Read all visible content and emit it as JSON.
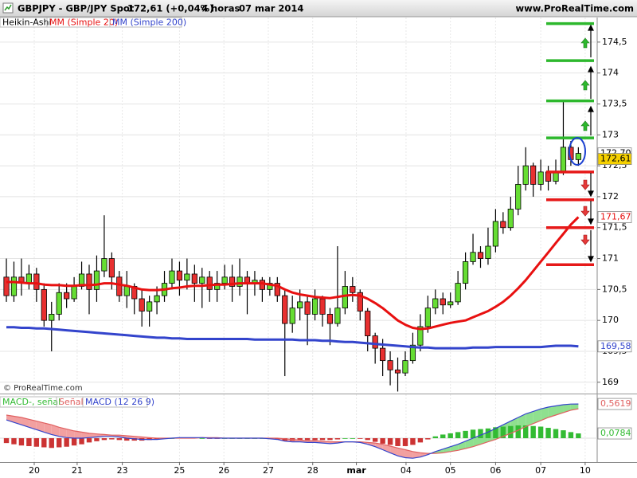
{
  "chart_data": [
    {
      "type": "candlestick",
      "title": "GBPJPY - GBP/JPY Spot",
      "price_text": "172,61 (+0,04%)",
      "timeframe": "4 horas",
      "date": "07 mar 2014",
      "source": "www.ProRealTime.com",
      "copyright": "© ProRealTime.com",
      "chart_style": "Heikin-Ashi",
      "grid": true,
      "up_color": "#66dd33",
      "down_color": "#e83030",
      "xlim": [
        -0.85,
        78.5
      ],
      "xticks": [
        {
          "value": 3.7,
          "label": "20"
        },
        {
          "value": 9.4,
          "label": "21"
        },
        {
          "value": 15.4,
          "label": "23"
        },
        {
          "value": 23,
          "label": "25"
        },
        {
          "value": 28.9,
          "label": "26"
        },
        {
          "value": 34.8,
          "label": "27"
        },
        {
          "value": 40.7,
          "label": "28"
        },
        {
          "value": 46.5,
          "label": "mar"
        },
        {
          "value": 53.1,
          "label": "04"
        },
        {
          "value": 59,
          "label": "05"
        },
        {
          "value": 65,
          "label": "06"
        },
        {
          "value": 71,
          "label": "07"
        },
        {
          "value": 76.9,
          "label": "10"
        }
      ],
      "ylim": [
        168.83,
        174.73
      ],
      "yticks": [
        169,
        {
          "value": 169.5,
          "label": "169,5"
        },
        170,
        {
          "value": 170.5,
          "label": "170,5"
        },
        171,
        {
          "value": 171.5,
          "label": "171,5"
        },
        172,
        {
          "value": 172.5,
          "label": "172,5"
        },
        173,
        {
          "value": 173.5,
          "label": "173,5"
        },
        174,
        {
          "value": 174.5,
          "label": "174,5"
        }
      ],
      "open": [
        170.7,
        170.4,
        170.7,
        170.6,
        170.75,
        170.5,
        170.0,
        170.1,
        170.45,
        170.35,
        170.55,
        170.75,
        170.5,
        170.8,
        171.0,
        170.7,
        170.4,
        170.55,
        170.35,
        170.15,
        170.3,
        170.4,
        170.6,
        170.8,
        170.65,
        170.75,
        170.6,
        170.7,
        170.5,
        170.6,
        170.7,
        170.55,
        170.7,
        170.6,
        170.65,
        170.5,
        170.6,
        170.4,
        169.95,
        170.2,
        170.3,
        170.1,
        170.35,
        170.1,
        169.95,
        170.2,
        170.55,
        170.45,
        170.15,
        169.75,
        169.55,
        169.35,
        169.2,
        169.15,
        169.35,
        169.6,
        169.9,
        170.2,
        170.35,
        170.25,
        170.3,
        170.6,
        170.95,
        171.1,
        171.0,
        171.2,
        171.6,
        171.5,
        171.8,
        172.2,
        172.5,
        172.2,
        172.4,
        172.25,
        172.4,
        172.8,
        172.6
      ],
      "close": [
        170.4,
        170.7,
        170.6,
        170.75,
        170.5,
        170.0,
        170.1,
        170.45,
        170.35,
        170.55,
        170.75,
        170.5,
        170.8,
        171.0,
        170.7,
        170.4,
        170.55,
        170.35,
        170.15,
        170.3,
        170.4,
        170.6,
        170.8,
        170.65,
        170.75,
        170.6,
        170.7,
        170.5,
        170.6,
        170.7,
        170.55,
        170.7,
        170.6,
        170.65,
        170.5,
        170.6,
        170.4,
        169.95,
        170.2,
        170.3,
        170.1,
        170.35,
        170.1,
        169.95,
        170.2,
        170.55,
        170.45,
        170.15,
        169.75,
        169.55,
        169.35,
        169.2,
        169.15,
        169.35,
        169.6,
        169.9,
        170.2,
        170.35,
        170.25,
        170.3,
        170.6,
        170.95,
        171.1,
        171.0,
        171.2,
        171.6,
        171.5,
        171.8,
        172.2,
        172.5,
        172.2,
        172.4,
        172.25,
        172.4,
        172.8,
        172.6,
        172.7
      ],
      "high": [
        171.0,
        170.95,
        171.0,
        170.9,
        170.85,
        170.6,
        170.3,
        170.6,
        170.6,
        170.7,
        170.95,
        170.9,
        171.05,
        171.7,
        171.1,
        170.8,
        170.8,
        170.6,
        170.5,
        170.4,
        170.55,
        170.8,
        171.0,
        170.95,
        171.0,
        170.9,
        170.85,
        170.8,
        170.8,
        170.9,
        170.9,
        171.0,
        170.8,
        170.8,
        170.7,
        170.7,
        170.7,
        170.5,
        170.4,
        170.5,
        170.4,
        170.5,
        170.4,
        170.2,
        171.2,
        170.8,
        170.7,
        170.5,
        170.2,
        169.8,
        169.7,
        169.5,
        169.4,
        169.5,
        169.8,
        170.1,
        170.4,
        170.5,
        170.45,
        170.45,
        170.8,
        171.1,
        171.4,
        171.2,
        171.5,
        171.8,
        171.75,
        172.0,
        172.5,
        172.8,
        172.55,
        172.6,
        172.5,
        172.6,
        173.55,
        172.9,
        172.8
      ],
      "low": [
        170.3,
        170.3,
        170.4,
        170.5,
        170.3,
        169.9,
        169.5,
        170.0,
        170.2,
        170.3,
        170.5,
        170.1,
        170.3,
        170.7,
        170.5,
        170.3,
        170.2,
        170.1,
        169.9,
        169.9,
        170.1,
        170.3,
        170.5,
        170.4,
        170.5,
        170.3,
        170.2,
        170.3,
        170.3,
        170.5,
        170.3,
        170.4,
        170.1,
        170.4,
        170.3,
        170.4,
        170.3,
        169.1,
        169.8,
        170.0,
        169.6,
        170.0,
        169.9,
        169.6,
        169.9,
        170.1,
        170.3,
        170.0,
        169.5,
        169.3,
        169.1,
        168.95,
        168.85,
        169.1,
        169.3,
        169.5,
        169.8,
        170.1,
        170.1,
        170.2,
        170.25,
        170.5,
        170.9,
        170.85,
        170.9,
        171.1,
        171.4,
        171.45,
        171.7,
        172.1,
        172.0,
        172.1,
        172.1,
        172.2,
        172.35,
        172.5,
        172.5
      ],
      "series": [
        {
          "name": "MM (Simple 20)",
          "color": "#e81010",
          "last_label": "171,67",
          "values": [
            170.62,
            170.62,
            170.61,
            170.6,
            170.6,
            170.58,
            170.57,
            170.57,
            170.56,
            170.56,
            170.57,
            170.57,
            170.58,
            170.6,
            170.6,
            170.58,
            170.56,
            170.53,
            170.5,
            170.49,
            170.49,
            170.5,
            170.52,
            170.53,
            170.55,
            170.56,
            170.56,
            170.57,
            170.58,
            170.58,
            170.59,
            170.6,
            170.6,
            170.6,
            170.6,
            170.58,
            170.56,
            170.5,
            170.45,
            170.42,
            170.4,
            170.38,
            170.37,
            170.36,
            170.38,
            170.4,
            170.41,
            170.4,
            170.35,
            170.28,
            170.2,
            170.1,
            170.0,
            169.93,
            169.88,
            169.86,
            169.87,
            169.9,
            169.93,
            169.96,
            169.98,
            170.0,
            170.05,
            170.1,
            170.15,
            170.22,
            170.3,
            170.4,
            170.52,
            170.65,
            170.8,
            170.95,
            171.1,
            171.25,
            171.4,
            171.55,
            171.67
          ]
        },
        {
          "name": "MM (Simple 200)",
          "color": "#3344cc",
          "last_label": "169,58",
          "values": [
            169.89,
            169.89,
            169.88,
            169.88,
            169.87,
            169.87,
            169.86,
            169.85,
            169.84,
            169.83,
            169.82,
            169.81,
            169.8,
            169.79,
            169.78,
            169.77,
            169.76,
            169.75,
            169.74,
            169.73,
            169.72,
            169.72,
            169.71,
            169.71,
            169.7,
            169.7,
            169.7,
            169.7,
            169.7,
            169.7,
            169.7,
            169.7,
            169.7,
            169.69,
            169.69,
            169.69,
            169.69,
            169.69,
            169.69,
            169.68,
            169.68,
            169.68,
            169.67,
            169.67,
            169.66,
            169.65,
            169.65,
            169.64,
            169.63,
            169.62,
            169.61,
            169.6,
            169.59,
            169.58,
            169.57,
            169.56,
            169.56,
            169.55,
            169.55,
            169.55,
            169.55,
            169.55,
            169.56,
            169.56,
            169.56,
            169.57,
            169.57,
            169.57,
            169.57,
            169.57,
            169.57,
            169.57,
            169.58,
            169.59,
            169.59,
            169.59,
            169.58
          ]
        }
      ],
      "price_labels": [
        {
          "value": 172.7,
          "label": "172,70",
          "color": "#ffffff"
        },
        {
          "value": 172.61,
          "label": "172,61",
          "color": "#f5d000"
        }
      ],
      "levels": [
        {
          "color": "#2db82d",
          "values": [
            174.8,
            174.2,
            173.55,
            172.95
          ]
        },
        {
          "color": "#e61919",
          "values": [
            172.4,
            171.95,
            171.5,
            170.9
          ]
        }
      ]
    },
    {
      "type": "macd",
      "ylim": [
        -0.366,
        0.72
      ],
      "up_fill": "#8fe08f",
      "down_fill": "#f2a0a0",
      "histogram": {
        "name": "MACD-, señal",
        "up_color": "#33bb33",
        "down_color": "#cc3333",
        "last_label": "0,0784",
        "values": [
          -0.08,
          -0.1,
          -0.12,
          -0.13,
          -0.14,
          -0.15,
          -0.16,
          -0.15,
          -0.14,
          -0.12,
          -0.1,
          -0.07,
          -0.05,
          -0.03,
          -0.02,
          -0.03,
          -0.04,
          -0.04,
          -0.04,
          -0.03,
          -0.02,
          -0.01,
          0,
          0.01,
          0.01,
          0.01,
          0,
          -0.01,
          -0.01,
          0,
          0,
          0,
          0,
          0,
          0,
          -0.01,
          -0.02,
          -0.04,
          -0.04,
          -0.03,
          -0.03,
          -0.03,
          -0.03,
          -0.03,
          -0.02,
          0,
          0,
          -0.01,
          -0.03,
          -0.06,
          -0.09,
          -0.11,
          -0.13,
          -0.13,
          -0.11,
          -0.07,
          -0.02,
          0.03,
          0.06,
          0.08,
          0.1,
          0.12,
          0.14,
          0.15,
          0.16,
          0.18,
          0.19,
          0.2,
          0.21,
          0.21,
          0.2,
          0.19,
          0.17,
          0.15,
          0.13,
          0.1,
          0.0784
        ]
      },
      "series": [
        {
          "name": "Señal",
          "color": "#e06060",
          "values": [
            0.38,
            0.36,
            0.34,
            0.31,
            0.28,
            0.25,
            0.22,
            0.18,
            0.15,
            0.12,
            0.1,
            0.08,
            0.07,
            0.06,
            0.05,
            0.05,
            0.04,
            0.03,
            0.02,
            0.01,
            0,
            0,
            0,
            0,
            0,
            0,
            0.01,
            0.01,
            0.01,
            0,
            0,
            0,
            0,
            0,
            0,
            0,
            0,
            -0.01,
            -0.02,
            -0.03,
            -0.04,
            -0.04,
            -0.05,
            -0.06,
            -0.06,
            -0.06,
            -0.06,
            -0.06,
            -0.07,
            -0.08,
            -0.1,
            -0.13,
            -0.16,
            -0.19,
            -0.22,
            -0.24,
            -0.25,
            -0.25,
            -0.24,
            -0.22,
            -0.2,
            -0.17,
            -0.14,
            -0.1,
            -0.06,
            -0.02,
            0.03,
            0.08,
            0.13,
            0.19,
            0.24,
            0.29,
            0.34,
            0.38,
            0.42,
            0.46,
            0.4835
          ]
        },
        {
          "name": "MACD (12 26 9)",
          "color": "#3344cc",
          "last_label": "0,5619",
          "values": [
            0.3,
            0.26,
            0.22,
            0.18,
            0.14,
            0.1,
            0.06,
            0.03,
            0.01,
            0,
            0,
            0.01,
            0.02,
            0.03,
            0.03,
            0.02,
            0,
            -0.01,
            -0.02,
            -0.02,
            -0.02,
            -0.01,
            0,
            0.01,
            0.01,
            0.01,
            0.01,
            0,
            0,
            0,
            0,
            0,
            0,
            0,
            0,
            -0.01,
            -0.02,
            -0.05,
            -0.06,
            -0.06,
            -0.07,
            -0.07,
            -0.08,
            -0.09,
            -0.08,
            -0.06,
            -0.06,
            -0.07,
            -0.1,
            -0.14,
            -0.19,
            -0.24,
            -0.29,
            -0.32,
            -0.33,
            -0.31,
            -0.27,
            -0.22,
            -0.18,
            -0.14,
            -0.1,
            -0.05,
            0,
            0.05,
            0.1,
            0.16,
            0.22,
            0.28,
            0.34,
            0.4,
            0.44,
            0.48,
            0.51,
            0.53,
            0.55,
            0.56,
            0.5619
          ]
        }
      ]
    }
  ]
}
